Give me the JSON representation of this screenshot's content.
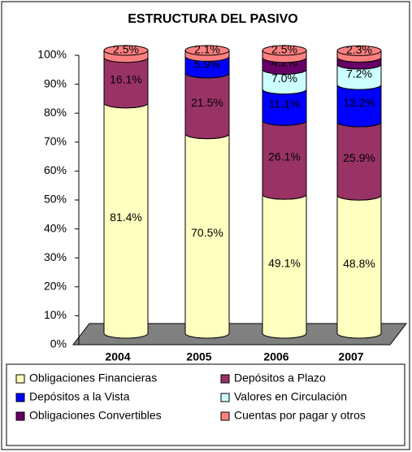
{
  "chart_data": {
    "type": "stacked-cylinder",
    "title": "ESTRUCTURA DEL PASIVO",
    "categories": [
      "2004",
      "2005",
      "2006",
      "2007"
    ],
    "series": [
      {
        "name": "Obligaciones Financieras",
        "color": "#ffffc0",
        "values": [
          81.4,
          70.5,
          49.1,
          48.8
        ],
        "value_labels": [
          "81.4%",
          "70.5%",
          "49.1%",
          "48.8%"
        ]
      },
      {
        "name": "Depósitos a Plazo",
        "color": "#993366",
        "values": [
          16.1,
          21.5,
          26.1,
          25.9
        ],
        "value_labels": [
          "16.1%",
          "21.5%",
          "26.1%",
          "25.9%"
        ]
      },
      {
        "name": "Depósitos a la Vista",
        "color": "#0000ff",
        "values": [
          null,
          5.9,
          11.1,
          13.2
        ],
        "value_labels": [
          null,
          "5.9%",
          "11.1%",
          "13.2%"
        ]
      },
      {
        "name": "Valores en Circulación",
        "color": "#ccffff",
        "values": [
          null,
          null,
          7.0,
          7.2
        ],
        "value_labels": [
          null,
          null,
          "7.0%",
          "7.2%"
        ]
      },
      {
        "name": "Obligaciones Convertibles",
        "color": "#660066",
        "values": [
          null,
          null,
          4.2,
          2.5
        ],
        "value_labels": [
          null,
          null,
          "4.2%",
          "2.5%"
        ]
      },
      {
        "name": "Cuentas por pagar y otros",
        "color": "#ff8080",
        "values": [
          2.5,
          2.1,
          2.5,
          2.3
        ],
        "value_labels": [
          "2.5%",
          "2.1%",
          "2.5%",
          "2.3%"
        ]
      }
    ],
    "ylim": [
      0,
      100
    ],
    "yticks": [
      {
        "value": 0,
        "label": "0%"
      },
      {
        "value": 10,
        "label": "10%"
      },
      {
        "value": 20,
        "label": "20%"
      },
      {
        "value": 30,
        "label": "30%"
      },
      {
        "value": 40,
        "label": "40%"
      },
      {
        "value": 50,
        "label": "50%"
      },
      {
        "value": 60,
        "label": "60%"
      },
      {
        "value": 70,
        "label": "70%"
      },
      {
        "value": 80,
        "label": "80%"
      },
      {
        "value": 90,
        "label": "90%"
      },
      {
        "value": 100,
        "label": "100%"
      }
    ],
    "grid": false
  }
}
